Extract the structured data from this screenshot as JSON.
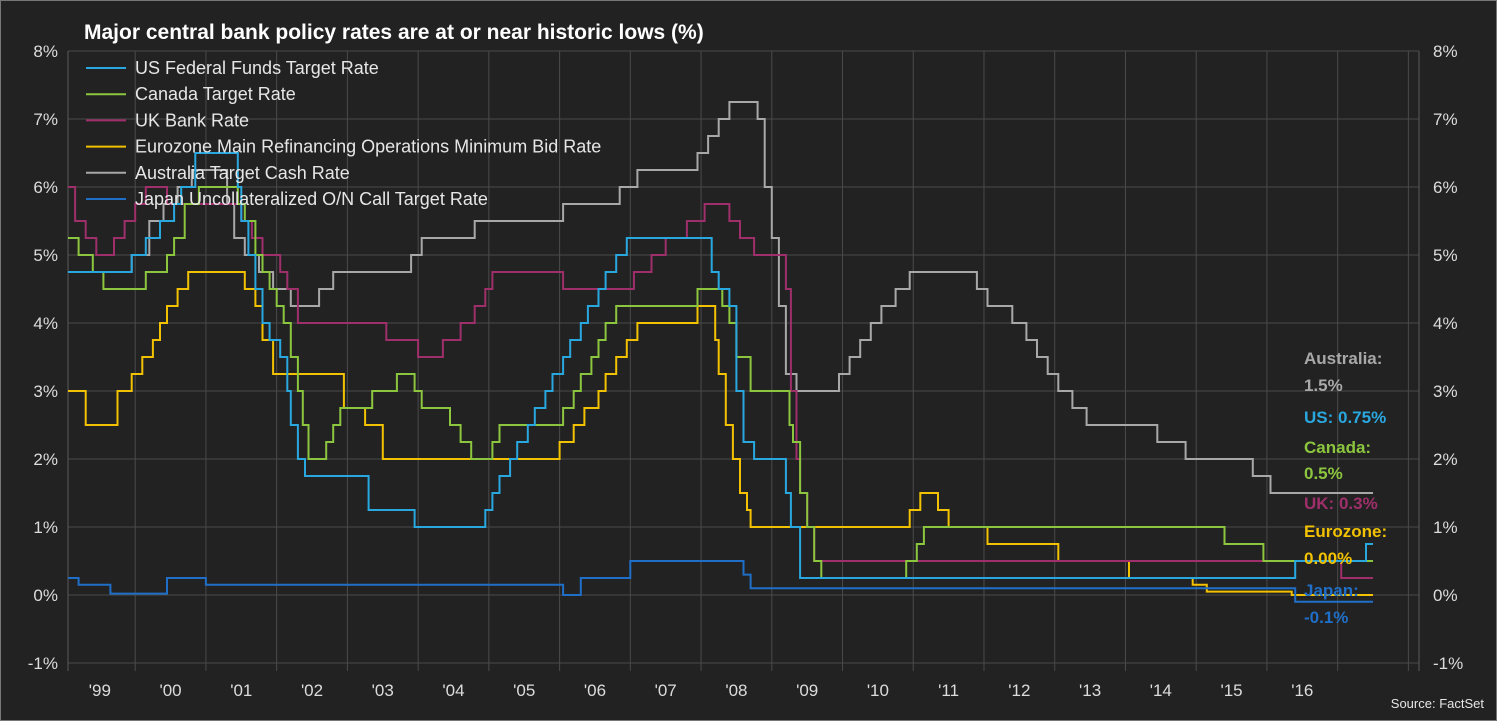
{
  "chart_data": {
    "type": "line",
    "title": "Major central bank policy rates are at or near historic lows (%)",
    "source": "Source: FactSet",
    "y_ticks": [
      "8%",
      "7%",
      "6%",
      "5%",
      "4%",
      "3%",
      "2%",
      "1%",
      "0%",
      "-1%"
    ],
    "y_values": [
      8,
      7,
      6,
      5,
      4,
      3,
      2,
      1,
      0,
      -1
    ],
    "ylim": [
      -1,
      8
    ],
    "xlim": [
      1998.6,
      2017.7
    ],
    "x_ticks": [
      "'99",
      "'00",
      "'01",
      "'02",
      "'03",
      "'04",
      "'05",
      "'06",
      "'07",
      "'08",
      "'09",
      "'10",
      "'11",
      "'12",
      "'13",
      "'14",
      "'15",
      "'16"
    ],
    "x_tick_values": [
      1999,
      2000,
      2001,
      2002,
      2003,
      2004,
      2005,
      2006,
      2007,
      2008,
      2009,
      2010,
      2011,
      2012,
      2013,
      2014,
      2015,
      2016
    ],
    "series": [
      {
        "name": "US Federal Funds Target Rate",
        "color": "#29a8e0",
        "points": [
          [
            1998.6,
            4.75
          ],
          [
            1999.5,
            5.0
          ],
          [
            1999.7,
            5.25
          ],
          [
            1999.9,
            5.5
          ],
          [
            2000.1,
            5.75
          ],
          [
            2000.2,
            6.0
          ],
          [
            2000.4,
            6.5
          ],
          [
            2001.0,
            6.0
          ],
          [
            2001.05,
            5.5
          ],
          [
            2001.15,
            5.0
          ],
          [
            2001.25,
            4.5
          ],
          [
            2001.35,
            4.0
          ],
          [
            2001.45,
            3.75
          ],
          [
            2001.6,
            3.5
          ],
          [
            2001.7,
            3.0
          ],
          [
            2001.75,
            2.5
          ],
          [
            2001.85,
            2.0
          ],
          [
            2001.95,
            1.75
          ],
          [
            2002.85,
            1.25
          ],
          [
            2003.5,
            1.0
          ],
          [
            2004.5,
            1.25
          ],
          [
            2004.6,
            1.5
          ],
          [
            2004.7,
            1.75
          ],
          [
            2004.85,
            2.0
          ],
          [
            2004.95,
            2.25
          ],
          [
            2005.1,
            2.5
          ],
          [
            2005.2,
            2.75
          ],
          [
            2005.35,
            3.0
          ],
          [
            2005.45,
            3.25
          ],
          [
            2005.6,
            3.5
          ],
          [
            2005.7,
            3.75
          ],
          [
            2005.85,
            4.0
          ],
          [
            2005.95,
            4.25
          ],
          [
            2006.1,
            4.5
          ],
          [
            2006.2,
            4.75
          ],
          [
            2006.35,
            5.0
          ],
          [
            2006.5,
            5.25
          ],
          [
            2007.7,
            4.75
          ],
          [
            2007.8,
            4.5
          ],
          [
            2007.95,
            4.25
          ],
          [
            2008.05,
            3.0
          ],
          [
            2008.15,
            2.25
          ],
          [
            2008.3,
            2.0
          ],
          [
            2008.75,
            1.5
          ],
          [
            2008.82,
            1.0
          ],
          [
            2008.95,
            0.25
          ],
          [
            2015.95,
            0.5
          ],
          [
            2016.95,
            0.75
          ],
          [
            2017.05,
            0.75
          ]
        ]
      },
      {
        "name": "Canada Target Rate",
        "color": "#8cc63e",
        "points": [
          [
            1998.6,
            5.25
          ],
          [
            1998.75,
            5.0
          ],
          [
            1998.95,
            4.75
          ],
          [
            1999.1,
            4.5
          ],
          [
            1999.7,
            4.75
          ],
          [
            2000.0,
            5.0
          ],
          [
            2000.1,
            5.25
          ],
          [
            2000.25,
            5.75
          ],
          [
            2000.45,
            6.0
          ],
          [
            2001.0,
            5.75
          ],
          [
            2001.1,
            5.5
          ],
          [
            2001.25,
            5.0
          ],
          [
            2001.35,
            4.75
          ],
          [
            2001.45,
            4.5
          ],
          [
            2001.55,
            4.25
          ],
          [
            2001.65,
            4.0
          ],
          [
            2001.75,
            3.5
          ],
          [
            2001.85,
            3.0
          ],
          [
            2001.92,
            2.5
          ],
          [
            2002.0,
            2.0
          ],
          [
            2002.25,
            2.25
          ],
          [
            2002.35,
            2.5
          ],
          [
            2002.45,
            2.75
          ],
          [
            2002.9,
            3.0
          ],
          [
            2003.25,
            3.25
          ],
          [
            2003.5,
            3.0
          ],
          [
            2003.6,
            2.75
          ],
          [
            2004.0,
            2.5
          ],
          [
            2004.15,
            2.25
          ],
          [
            2004.3,
            2.0
          ],
          [
            2004.6,
            2.25
          ],
          [
            2004.7,
            2.5
          ],
          [
            2005.6,
            2.75
          ],
          [
            2005.75,
            3.0
          ],
          [
            2005.85,
            3.25
          ],
          [
            2006.0,
            3.5
          ],
          [
            2006.1,
            3.75
          ],
          [
            2006.2,
            4.0
          ],
          [
            2006.35,
            4.25
          ],
          [
            2007.5,
            4.5
          ],
          [
            2007.85,
            4.25
          ],
          [
            2007.95,
            4.0
          ],
          [
            2008.05,
            3.5
          ],
          [
            2008.25,
            3.0
          ],
          [
            2008.8,
            2.5
          ],
          [
            2008.85,
            2.25
          ],
          [
            2008.95,
            1.5
          ],
          [
            2009.05,
            1.0
          ],
          [
            2009.15,
            0.5
          ],
          [
            2009.25,
            0.25
          ],
          [
            2010.45,
            0.5
          ],
          [
            2010.6,
            0.75
          ],
          [
            2010.7,
            1.0
          ],
          [
            2014.95,
            0.75
          ],
          [
            2015.5,
            0.5
          ],
          [
            2017.05,
            0.5
          ]
        ]
      },
      {
        "name": "UK Bank Rate",
        "color": "#9e2f6b",
        "points": [
          [
            1998.6,
            6.0
          ],
          [
            1998.7,
            5.5
          ],
          [
            1998.85,
            5.25
          ],
          [
            1999.0,
            5.0
          ],
          [
            1999.25,
            5.25
          ],
          [
            1999.4,
            5.5
          ],
          [
            1999.55,
            5.75
          ],
          [
            1999.7,
            6.0
          ],
          [
            2000.0,
            5.75
          ],
          [
            2001.05,
            5.5
          ],
          [
            2001.2,
            5.25
          ],
          [
            2001.35,
            5.0
          ],
          [
            2001.6,
            4.75
          ],
          [
            2001.7,
            4.5
          ],
          [
            2001.85,
            4.0
          ],
          [
            2003.1,
            3.75
          ],
          [
            2003.55,
            3.5
          ],
          [
            2003.9,
            3.75
          ],
          [
            2004.15,
            4.0
          ],
          [
            2004.35,
            4.25
          ],
          [
            2004.5,
            4.5
          ],
          [
            2004.6,
            4.75
          ],
          [
            2005.6,
            4.5
          ],
          [
            2006.6,
            4.75
          ],
          [
            2006.85,
            5.0
          ],
          [
            2007.05,
            5.25
          ],
          [
            2007.35,
            5.5
          ],
          [
            2007.6,
            5.75
          ],
          [
            2007.95,
            5.5
          ],
          [
            2008.1,
            5.25
          ],
          [
            2008.3,
            5.0
          ],
          [
            2008.75,
            4.5
          ],
          [
            2008.82,
            3.0
          ],
          [
            2008.9,
            2.0
          ],
          [
            2008.95,
            1.5
          ],
          [
            2009.05,
            1.0
          ],
          [
            2009.15,
            0.5
          ],
          [
            2016.6,
            0.25
          ],
          [
            2017.05,
            0.25
          ]
        ]
      },
      {
        "name": "Eurozone Main Refinancing Operations Minimum Bid Rate",
        "color": "#f2c200",
        "points": [
          [
            1998.6,
            3.0
          ],
          [
            1998.85,
            2.5
          ],
          [
            1999.3,
            3.0
          ],
          [
            1999.5,
            3.25
          ],
          [
            1999.65,
            3.5
          ],
          [
            1999.8,
            3.75
          ],
          [
            1999.9,
            4.0
          ],
          [
            2000.0,
            4.25
          ],
          [
            2000.15,
            4.5
          ],
          [
            2000.3,
            4.75
          ],
          [
            2001.1,
            4.5
          ],
          [
            2001.25,
            4.25
          ],
          [
            2001.35,
            3.75
          ],
          [
            2001.5,
            3.25
          ],
          [
            2002.5,
            2.75
          ],
          [
            2002.8,
            2.5
          ],
          [
            2003.05,
            2.0
          ],
          [
            2005.55,
            2.25
          ],
          [
            2005.75,
            2.5
          ],
          [
            2005.9,
            2.75
          ],
          [
            2006.1,
            3.0
          ],
          [
            2006.2,
            3.25
          ],
          [
            2006.35,
            3.5
          ],
          [
            2006.5,
            3.75
          ],
          [
            2006.65,
            4.0
          ],
          [
            2007.5,
            4.25
          ],
          [
            2007.75,
            3.75
          ],
          [
            2007.8,
            3.25
          ],
          [
            2007.9,
            2.5
          ],
          [
            2008.0,
            2.0
          ],
          [
            2008.1,
            1.5
          ],
          [
            2008.2,
            1.25
          ],
          [
            2008.25,
            1.0
          ],
          [
            2010.5,
            1.25
          ],
          [
            2010.65,
            1.5
          ],
          [
            2010.9,
            1.25
          ],
          [
            2011.05,
            1.0
          ],
          [
            2011.6,
            0.75
          ],
          [
            2012.6,
            0.5
          ],
          [
            2013.6,
            0.25
          ],
          [
            2014.5,
            0.15
          ],
          [
            2014.7,
            0.05
          ],
          [
            2015.9,
            0.0
          ],
          [
            2017.05,
            0.0
          ]
        ]
      },
      {
        "name": "Australia Target Cash Rate",
        "color": "#a8a8a8",
        "points": [
          [
            1998.6,
            4.75
          ],
          [
            1999.5,
            5.0
          ],
          [
            1999.75,
            5.5
          ],
          [
            1999.95,
            5.75
          ],
          [
            2000.15,
            6.0
          ],
          [
            2000.35,
            6.25
          ],
          [
            2000.85,
            5.75
          ],
          [
            2000.95,
            5.25
          ],
          [
            2001.1,
            5.0
          ],
          [
            2001.3,
            4.75
          ],
          [
            2001.5,
            4.5
          ],
          [
            2001.75,
            4.25
          ],
          [
            2002.15,
            4.5
          ],
          [
            2002.35,
            4.75
          ],
          [
            2003.45,
            5.0
          ],
          [
            2003.6,
            5.25
          ],
          [
            2004.35,
            5.5
          ],
          [
            2005.6,
            5.75
          ],
          [
            2006.4,
            6.0
          ],
          [
            2006.65,
            6.25
          ],
          [
            2007.5,
            6.5
          ],
          [
            2007.65,
            6.75
          ],
          [
            2007.8,
            7.0
          ],
          [
            2007.95,
            7.25
          ],
          [
            2008.35,
            7.0
          ],
          [
            2008.45,
            6.0
          ],
          [
            2008.55,
            5.25
          ],
          [
            2008.65,
            4.25
          ],
          [
            2008.75,
            3.25
          ],
          [
            2008.9,
            3.0
          ],
          [
            2009.5,
            3.25
          ],
          [
            2009.65,
            3.5
          ],
          [
            2009.8,
            3.75
          ],
          [
            2009.95,
            4.0
          ],
          [
            2010.1,
            4.25
          ],
          [
            2010.3,
            4.5
          ],
          [
            2010.5,
            4.75
          ],
          [
            2011.45,
            4.5
          ],
          [
            2011.6,
            4.25
          ],
          [
            2011.95,
            4.0
          ],
          [
            2012.15,
            3.75
          ],
          [
            2012.3,
            3.5
          ],
          [
            2012.45,
            3.25
          ],
          [
            2012.6,
            3.0
          ],
          [
            2012.8,
            2.75
          ],
          [
            2013.0,
            2.5
          ],
          [
            2014.0,
            2.25
          ],
          [
            2014.4,
            2.0
          ],
          [
            2015.35,
            1.75
          ],
          [
            2015.6,
            1.5
          ],
          [
            2017.05,
            1.5
          ]
        ]
      },
      {
        "name": "Japan Uncollateralized O/N Call Target Rate",
        "color": "#1f6fc8",
        "points": [
          [
            1998.6,
            0.25
          ],
          [
            1998.75,
            0.15
          ],
          [
            1999.2,
            0.02
          ],
          [
            2000.0,
            0.25
          ],
          [
            2000.55,
            0.15
          ],
          [
            2005.6,
            0.0
          ],
          [
            2005.85,
            0.25
          ],
          [
            2006.55,
            0.5
          ],
          [
            2008.15,
            0.3
          ],
          [
            2008.25,
            0.1
          ],
          [
            2015.95,
            -0.1
          ],
          [
            2017.05,
            -0.1
          ]
        ]
      }
    ],
    "end_labels": [
      {
        "lines": [
          "Australia:",
          "1.5%"
        ],
        "color": "#a8a8a8"
      },
      {
        "lines": [
          "US: 0.75%"
        ],
        "color": "#29a8e0"
      },
      {
        "lines": [
          "Canada:",
          "0.5%"
        ],
        "color": "#8cc63e"
      },
      {
        "lines": [
          "UK: 0.3%"
        ],
        "color": "#9e2f6b"
      },
      {
        "lines": [
          "Eurozone:",
          "0.00%"
        ],
        "color": "#f2c200"
      },
      {
        "lines": [
          "Japan:",
          "-0.1%"
        ],
        "color": "#1f6fc8"
      }
    ]
  }
}
